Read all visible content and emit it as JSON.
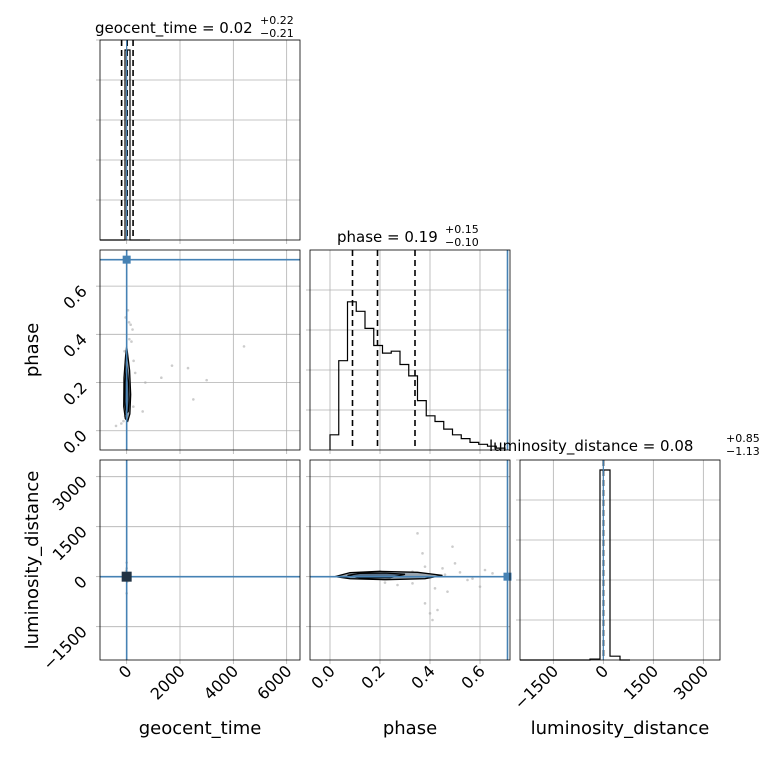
{
  "chart_data": {
    "type": "corner",
    "parameters": [
      "geocent_time",
      "phase",
      "luminosity_distance"
    ],
    "truths": {
      "geocent_time": 0,
      "phase": 0.71,
      "luminosity_distance": 0
    },
    "truth_color": "#4682b4",
    "contour_color": "#000000",
    "titles": {
      "geocent_time": {
        "prefix": "geocent_time = ",
        "value": "0.02",
        "plus": "+0.22",
        "minus": "−0.21"
      },
      "phase": {
        "prefix": "phase = ",
        "value": "0.19",
        "plus": "+0.15",
        "minus": "−0.10"
      },
      "luminosity_distance": {
        "prefix": "luminosity_distance = ",
        "value": "0.08",
        "plus": "+0.85",
        "minus": "−1.13"
      }
    },
    "axis_labels": {
      "x": [
        "geocent_time",
        "phase",
        "luminosity_distance"
      ],
      "y": [
        "phase",
        "luminosity_distance"
      ]
    },
    "ranges": {
      "geocent_time": [
        -1000,
        6500
      ],
      "phase": [
        -0.08,
        0.75
      ],
      "phase_x": [
        -0.08,
        0.72
      ],
      "luminosity_distance": [
        -2500,
        3500
      ]
    },
    "ticks": {
      "geocent_time": {
        "values": [
          0,
          2000,
          4000,
          6000
        ],
        "labels": [
          "0",
          "2000",
          "4000",
          "6000"
        ]
      },
      "phase_y": {
        "values": [
          0.0,
          0.2,
          0.4,
          0.6
        ],
        "labels": [
          "0.0",
          "0.2",
          "0.4",
          "0.6"
        ]
      },
      "phase_x": {
        "values": [
          0.0,
          0.2,
          0.4,
          0.6
        ],
        "labels": [
          "0.0",
          "0.2",
          "0.4",
          "0.6"
        ]
      },
      "luminosity_distance": {
        "values": [
          -1500,
          0,
          1500,
          3000
        ],
        "labels": [
          "−1500",
          "0",
          "1500",
          "3000"
        ]
      }
    },
    "quantiles": {
      "geocent_time": [
        -190,
        20,
        240
      ],
      "phase": [
        0.09,
        0.19,
        0.34
      ],
      "luminosity_distance": [
        -1.05,
        0.08,
        0.93
      ]
    },
    "hist_geocent_time": {
      "edges": [
        -1000,
        -812,
        -625,
        -438,
        -250,
        -62,
        125,
        312,
        500,
        688,
        875
      ],
      "values": [
        0,
        0,
        0,
        0,
        0,
        1.0,
        0,
        0,
        0,
        0
      ],
      "ymax": 1.0,
      "yticks": [
        0.2,
        0.4,
        0.6,
        0.8,
        1.0
      ]
    },
    "hist_phase": {
      "edges": [
        0.0,
        0.035,
        0.07,
        0.105,
        0.14,
        0.175,
        0.21,
        0.245,
        0.28,
        0.315,
        0.35,
        0.385,
        0.42,
        0.455,
        0.49,
        0.525,
        0.56,
        0.595,
        0.63,
        0.665,
        0.7
      ],
      "values": [
        0.08,
        0.47,
        0.78,
        0.73,
        0.64,
        0.55,
        0.51,
        0.52,
        0.45,
        0.39,
        0.26,
        0.18,
        0.15,
        0.11,
        0.08,
        0.06,
        0.04,
        0.03,
        0.02,
        0.01
      ],
      "yticks": [
        0.2,
        0.4,
        0.6,
        0.8
      ]
    },
    "hist_luminosity_distance": {
      "edges": [
        -2500,
        -2200,
        -1900,
        -1600,
        -1300,
        -1000,
        -700,
        -400,
        -100,
        200,
        500,
        800
      ],
      "values": [
        0,
        0,
        0,
        0,
        0,
        0,
        0,
        0.005,
        1.0,
        0.02,
        0
      ],
      "yticks": [
        0.2,
        0.4,
        0.6,
        0.8,
        1.0
      ]
    },
    "scatter_phase_vs_geocent": [
      [
        -120,
        0.04
      ],
      [
        -60,
        0.06
      ],
      [
        40,
        0.07
      ],
      [
        90,
        0.45
      ],
      [
        150,
        0.44
      ],
      [
        180,
        0.37
      ],
      [
        220,
        0.42
      ],
      [
        -40,
        0.47
      ],
      [
        260,
        0.29
      ],
      [
        320,
        0.24
      ],
      [
        700,
        0.2
      ],
      [
        1300,
        0.22
      ],
      [
        1700,
        0.27
      ],
      [
        2300,
        0.26
      ],
      [
        2500,
        0.13
      ],
      [
        3000,
        0.21
      ],
      [
        4400,
        0.35
      ],
      [
        600,
        0.08
      ],
      [
        -400,
        0.02
      ],
      [
        -200,
        0.03
      ],
      [
        50,
        0.5
      ],
      [
        100,
        0.38
      ],
      [
        -80,
        0.33
      ],
      [
        250,
        0.1
      ]
    ],
    "kde_phase_vs_geocent": {
      "outer": [
        [
          0,
          0.35
        ],
        [
          110,
          0.25
        ],
        [
          150,
          0.15
        ],
        [
          120,
          0.07
        ],
        [
          40,
          0.04
        ],
        [
          -50,
          0.05
        ],
        [
          -110,
          0.1
        ],
        [
          -100,
          0.22
        ],
        [
          -40,
          0.31
        ]
      ],
      "inner": [
        [
          0,
          0.28
        ],
        [
          70,
          0.2
        ],
        [
          90,
          0.13
        ],
        [
          60,
          0.08
        ],
        [
          -20,
          0.07
        ],
        [
          -70,
          0.12
        ],
        [
          -60,
          0.2
        ],
        [
          -20,
          0.26
        ]
      ]
    },
    "scatter_ld_vs_phase": [
      [
        0.37,
        700
      ],
      [
        0.38,
        300
      ],
      [
        0.45,
        250
      ],
      [
        0.55,
        -100
      ],
      [
        0.33,
        -200
      ],
      [
        0.38,
        -800
      ],
      [
        0.4,
        -1100
      ],
      [
        0.41,
        -1300
      ],
      [
        0.43,
        -1000
      ],
      [
        0.27,
        -250
      ],
      [
        0.49,
        900
      ],
      [
        0.6,
        -300
      ],
      [
        0.65,
        100
      ],
      [
        0.22,
        -180
      ],
      [
        0.52,
        130
      ],
      [
        0.57,
        -60
      ],
      [
        0.47,
        -450
      ],
      [
        0.35,
        1300
      ],
      [
        0.3,
        80
      ],
      [
        0.42,
        -350
      ],
      [
        0.5,
        400
      ],
      [
        0.62,
        200
      ],
      [
        0.33,
        150
      ],
      [
        0.46,
        60
      ]
    ],
    "kde_ld_vs_phase": {
      "outer": [
        [
          0.02,
          0
        ],
        [
          0.08,
          120
        ],
        [
          0.2,
          160
        ],
        [
          0.35,
          130
        ],
        [
          0.45,
          40
        ],
        [
          0.38,
          -60
        ],
        [
          0.22,
          -90
        ],
        [
          0.08,
          -60
        ]
      ],
      "inner": [
        [
          0.07,
          40
        ],
        [
          0.12,
          100
        ],
        [
          0.22,
          110
        ],
        [
          0.3,
          70
        ],
        [
          0.24,
          -30
        ],
        [
          0.12,
          -40
        ]
      ]
    },
    "scatter_ld_vs_geocent": [
      [
        0,
        420
      ],
      [
        0,
        250
      ],
      [
        -20,
        180
      ],
      [
        20,
        -150
      ],
      [
        0,
        -500
      ]
    ],
    "kde_ld_vs_geocent": {
      "outer": [
        [
          -50,
          80
        ],
        [
          50,
          80
        ],
        [
          40,
          -80
        ],
        [
          -40,
          -80
        ]
      ],
      "inner": [
        [
          -25,
          40
        ],
        [
          25,
          40
        ],
        [
          20,
          -40
        ],
        [
          -20,
          -40
        ]
      ]
    }
  }
}
